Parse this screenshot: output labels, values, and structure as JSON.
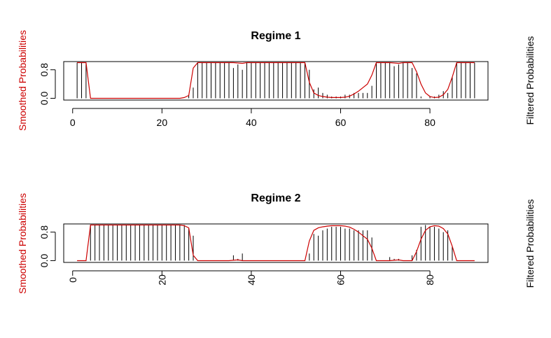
{
  "chart_data": [
    {
      "type": "line",
      "title": "Regime 1",
      "ylabel_left": "Smoothed Probabilities",
      "ylabel_right": "Filtered Probabilities",
      "smoothed_color": "#cc0000",
      "filtered_color": "#000000",
      "xlim": [
        -2,
        93
      ],
      "ylim": [
        -0.05,
        1.03
      ],
      "x_ticks": [
        0,
        20,
        40,
        60,
        80
      ],
      "x_tick_labels": [
        "0",
        "20",
        "40",
        "60",
        "80"
      ],
      "x_tick_rotation": 0,
      "y_ticks": [
        0.0,
        0.8
      ],
      "y_tick_labels": [
        "0.0",
        "0.8"
      ],
      "x": [
        1,
        2,
        3,
        4,
        5,
        6,
        7,
        8,
        9,
        10,
        11,
        12,
        13,
        14,
        15,
        16,
        17,
        18,
        19,
        20,
        21,
        22,
        23,
        24,
        25,
        26,
        27,
        28,
        29,
        30,
        31,
        32,
        33,
        34,
        35,
        36,
        37,
        38,
        39,
        40,
        41,
        42,
        43,
        44,
        45,
        46,
        47,
        48,
        49,
        50,
        51,
        52,
        53,
        54,
        55,
        56,
        57,
        58,
        59,
        60,
        61,
        62,
        63,
        64,
        65,
        66,
        67,
        68,
        69,
        70,
        71,
        72,
        73,
        74,
        75,
        76,
        77,
        78,
        79,
        80,
        81,
        82,
        83,
        84,
        85,
        86,
        87,
        88,
        89,
        90
      ],
      "series": [
        {
          "name": "Smoothed Probabilities",
          "style": "line",
          "values": [
            1.0,
            1.0,
            1.0,
            0.0,
            0.0,
            0.0,
            0.0,
            0.0,
            0.0,
            0.0,
            0.0,
            0.0,
            0.0,
            0.0,
            0.0,
            0.0,
            0.0,
            0.0,
            0.0,
            0.0,
            0.0,
            0.0,
            0.0,
            0.0,
            0.02,
            0.08,
            0.85,
            1.0,
            1.0,
            1.0,
            1.0,
            1.0,
            1.0,
            1.0,
            1.0,
            1.0,
            0.99,
            0.98,
            1.0,
            1.0,
            1.0,
            1.0,
            1.0,
            1.0,
            1.0,
            1.0,
            1.0,
            1.0,
            1.0,
            1.0,
            1.0,
            1.0,
            0.45,
            0.15,
            0.08,
            0.05,
            0.03,
            0.02,
            0.02,
            0.02,
            0.03,
            0.06,
            0.12,
            0.2,
            0.3,
            0.4,
            0.65,
            1.0,
            1.0,
            1.0,
            1.0,
            0.99,
            0.98,
            1.0,
            1.0,
            1.0,
            0.75,
            0.4,
            0.15,
            0.05,
            0.02,
            0.03,
            0.1,
            0.25,
            0.6,
            1.0,
            1.0,
            1.0,
            1.0,
            1.0
          ]
        },
        {
          "name": "Filtered Probabilities",
          "style": "histogram",
          "values": [
            1.0,
            1.0,
            1.0,
            0.0,
            0.0,
            0.0,
            0.0,
            0.0,
            0.0,
            0.0,
            0.0,
            0.0,
            0.0,
            0.0,
            0.0,
            0.0,
            0.0,
            0.0,
            0.0,
            0.0,
            0.0,
            0.0,
            0.0,
            0.0,
            0.0,
            0.1,
            0.3,
            1.0,
            1.0,
            1.0,
            1.0,
            1.0,
            1.0,
            1.0,
            1.0,
            0.85,
            0.95,
            0.8,
            1.0,
            1.0,
            1.0,
            1.0,
            1.0,
            1.0,
            1.0,
            1.0,
            1.0,
            1.0,
            1.0,
            1.0,
            1.0,
            1.0,
            0.8,
            0.25,
            0.3,
            0.15,
            0.1,
            0.05,
            0.05,
            0.05,
            0.1,
            0.1,
            0.15,
            0.15,
            0.15,
            0.15,
            0.35,
            1.0,
            1.0,
            1.0,
            1.0,
            0.9,
            0.95,
            1.0,
            1.0,
            0.85,
            0.7,
            0.05,
            0.0,
            0.05,
            0.05,
            0.1,
            0.2,
            0.15,
            0.6,
            1.0,
            1.0,
            1.0,
            1.0,
            1.0
          ]
        }
      ]
    },
    {
      "type": "line",
      "title": "Regime 2",
      "ylabel_left": "Smoothed Probabilities",
      "ylabel_right": "Filtered Probabilities",
      "smoothed_color": "#cc0000",
      "filtered_color": "#000000",
      "xlim": [
        -2,
        93
      ],
      "ylim": [
        -0.05,
        1.03
      ],
      "x_ticks": [
        0,
        20,
        40,
        60,
        80
      ],
      "x_tick_labels": [
        "0",
        "20",
        "40",
        "60",
        "80"
      ],
      "x_tick_rotation": 90,
      "y_ticks": [
        0.0,
        0.8
      ],
      "y_tick_labels": [
        "0.0",
        "0.8"
      ],
      "x": [
        1,
        2,
        3,
        4,
        5,
        6,
        7,
        8,
        9,
        10,
        11,
        12,
        13,
        14,
        15,
        16,
        17,
        18,
        19,
        20,
        21,
        22,
        23,
        24,
        25,
        26,
        27,
        28,
        29,
        30,
        31,
        32,
        33,
        34,
        35,
        36,
        37,
        38,
        39,
        40,
        41,
        42,
        43,
        44,
        45,
        46,
        47,
        48,
        49,
        50,
        51,
        52,
        53,
        54,
        55,
        56,
        57,
        58,
        59,
        60,
        61,
        62,
        63,
        64,
        65,
        66,
        67,
        68,
        69,
        70,
        71,
        72,
        73,
        74,
        75,
        76,
        77,
        78,
        79,
        80,
        81,
        82,
        83,
        84,
        85,
        86,
        87,
        88,
        89,
        90
      ],
      "series": [
        {
          "name": "Smoothed Probabilities",
          "style": "line",
          "values": [
            0.0,
            0.0,
            0.0,
            1.0,
            1.0,
            1.0,
            1.0,
            1.0,
            1.0,
            1.0,
            1.0,
            1.0,
            1.0,
            1.0,
            1.0,
            1.0,
            1.0,
            1.0,
            1.0,
            1.0,
            1.0,
            1.0,
            1.0,
            1.0,
            0.98,
            0.92,
            0.15,
            0.0,
            0.0,
            0.0,
            0.0,
            0.0,
            0.0,
            0.0,
            0.0,
            0.01,
            0.02,
            0.0,
            0.0,
            0.0,
            0.0,
            0.0,
            0.0,
            0.0,
            0.0,
            0.0,
            0.0,
            0.0,
            0.0,
            0.0,
            0.0,
            0.0,
            0.55,
            0.85,
            0.92,
            0.95,
            0.97,
            0.98,
            0.98,
            0.98,
            0.97,
            0.94,
            0.88,
            0.8,
            0.7,
            0.6,
            0.35,
            0.0,
            0.0,
            0.0,
            0.0,
            0.01,
            0.02,
            0.0,
            0.0,
            0.0,
            0.25,
            0.6,
            0.85,
            0.95,
            0.98,
            0.97,
            0.9,
            0.75,
            0.4,
            0.0,
            0.0,
            0.0,
            0.0,
            0.0
          ]
        },
        {
          "name": "Filtered Probabilities",
          "style": "histogram",
          "values": [
            0.0,
            0.0,
            0.0,
            1.0,
            1.0,
            1.0,
            1.0,
            1.0,
            1.0,
            1.0,
            1.0,
            1.0,
            1.0,
            1.0,
            1.0,
            1.0,
            1.0,
            1.0,
            1.0,
            1.0,
            1.0,
            1.0,
            1.0,
            1.0,
            1.0,
            0.9,
            0.7,
            0.0,
            0.0,
            0.0,
            0.0,
            0.0,
            0.0,
            0.0,
            0.0,
            0.15,
            0.05,
            0.2,
            0.0,
            0.0,
            0.0,
            0.0,
            0.0,
            0.0,
            0.0,
            0.0,
            0.0,
            0.0,
            0.0,
            0.0,
            0.0,
            0.0,
            0.2,
            0.75,
            0.7,
            0.85,
            0.9,
            0.95,
            0.95,
            0.95,
            0.9,
            0.9,
            0.85,
            0.85,
            0.85,
            0.85,
            0.65,
            0.0,
            0.0,
            0.0,
            0.1,
            0.05,
            0.05,
            0.0,
            0.0,
            0.15,
            0.3,
            0.95,
            1.0,
            0.95,
            0.95,
            0.9,
            0.8,
            0.85,
            0.4,
            0.0,
            0.0,
            0.0,
            0.0,
            0.0
          ]
        }
      ]
    }
  ]
}
